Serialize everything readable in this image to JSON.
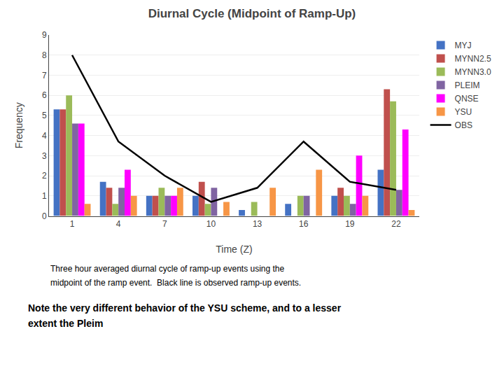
{
  "chart_data": {
    "type": "bar",
    "title": "Diurnal Cycle (Midpoint of Ramp-Up)",
    "x_label": "Time (Z)",
    "y_label": "Frequency",
    "categories": [
      "1",
      "4",
      "7",
      "10",
      "13",
      "16",
      "19",
      "22"
    ],
    "series": [
      {
        "name": "MYJ",
        "color": "#4472C4",
        "values": [
          5.3,
          1.7,
          1.0,
          1.0,
          0.3,
          0.6,
          1.0,
          2.3
        ]
      },
      {
        "name": "MYNN2.5",
        "color": "#C0504D",
        "values": [
          5.3,
          1.4,
          1.0,
          1.7,
          0.0,
          0.0,
          1.4,
          6.3
        ]
      },
      {
        "name": "MYNN3.0",
        "color": "#9BBB59",
        "values": [
          6.0,
          0.6,
          1.4,
          0.6,
          0.7,
          1.0,
          1.0,
          5.7
        ]
      },
      {
        "name": "PLEIM",
        "color": "#8064A2",
        "values": [
          4.6,
          1.4,
          1.0,
          1.4,
          0.0,
          1.0,
          0.6,
          1.3
        ]
      },
      {
        "name": "QNSE",
        "color": "#FF00FF",
        "values": [
          4.6,
          2.3,
          1.0,
          0.0,
          0.0,
          0.0,
          3.0,
          4.3
        ]
      },
      {
        "name": "YSU",
        "color": "#F79646",
        "values": [
          0.6,
          1.0,
          1.4,
          0.7,
          1.4,
          2.3,
          1.0,
          0.3
        ]
      },
      {
        "name": "OBS",
        "type": "line",
        "color": "#000000",
        "values": [
          8.0,
          3.7,
          2.0,
          0.7,
          1.4,
          3.7,
          1.7,
          1.3
        ]
      }
    ],
    "ylim": [
      0,
      9
    ],
    "yticks": [
      0,
      1,
      2,
      3,
      4,
      5,
      6,
      7,
      8,
      9
    ],
    "grid": true,
    "legend": "right",
    "annotations": [
      "Three hour averaged diurnal cycle of ramp-up events using the",
      "midpoint of the ramp event.  Black line is observed ramp-up events.",
      "Note the very different behavior of the YSU scheme, and to a lesser",
      "extent the Pleim"
    ]
  }
}
